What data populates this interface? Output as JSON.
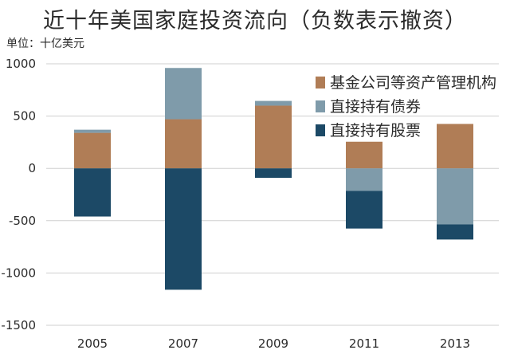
{
  "chart_data": {
    "type": "bar",
    "stacked": true,
    "title": "近十年美国家庭投资流向（负数表示撤资）",
    "unit_label": "单位：十亿美元",
    "categories": [
      "2005",
      "2007",
      "2009",
      "2011",
      "2013"
    ],
    "ylim": [
      -1500,
      1000
    ],
    "yticks": [
      1000,
      500,
      0,
      -500,
      -1000,
      -1500
    ],
    "ytick_labels": [
      "1000",
      "500",
      "0",
      "-500",
      "-1000",
      "-1500"
    ],
    "grid": true,
    "legend_position": "top-right",
    "series": [
      {
        "name": "基金公司等资产管理机构",
        "color": "#b07d56",
        "values": [
          340,
          470,
          600,
          255,
          425
        ]
      },
      {
        "name": "直接持有债券",
        "color": "#7f9baa",
        "values": [
          30,
          490,
          45,
          -215,
          -535
        ]
      },
      {
        "name": "直接持有股票",
        "color": "#1c4966",
        "values": [
          -460,
          -1160,
          -90,
          -360,
          -145
        ]
      }
    ]
  }
}
